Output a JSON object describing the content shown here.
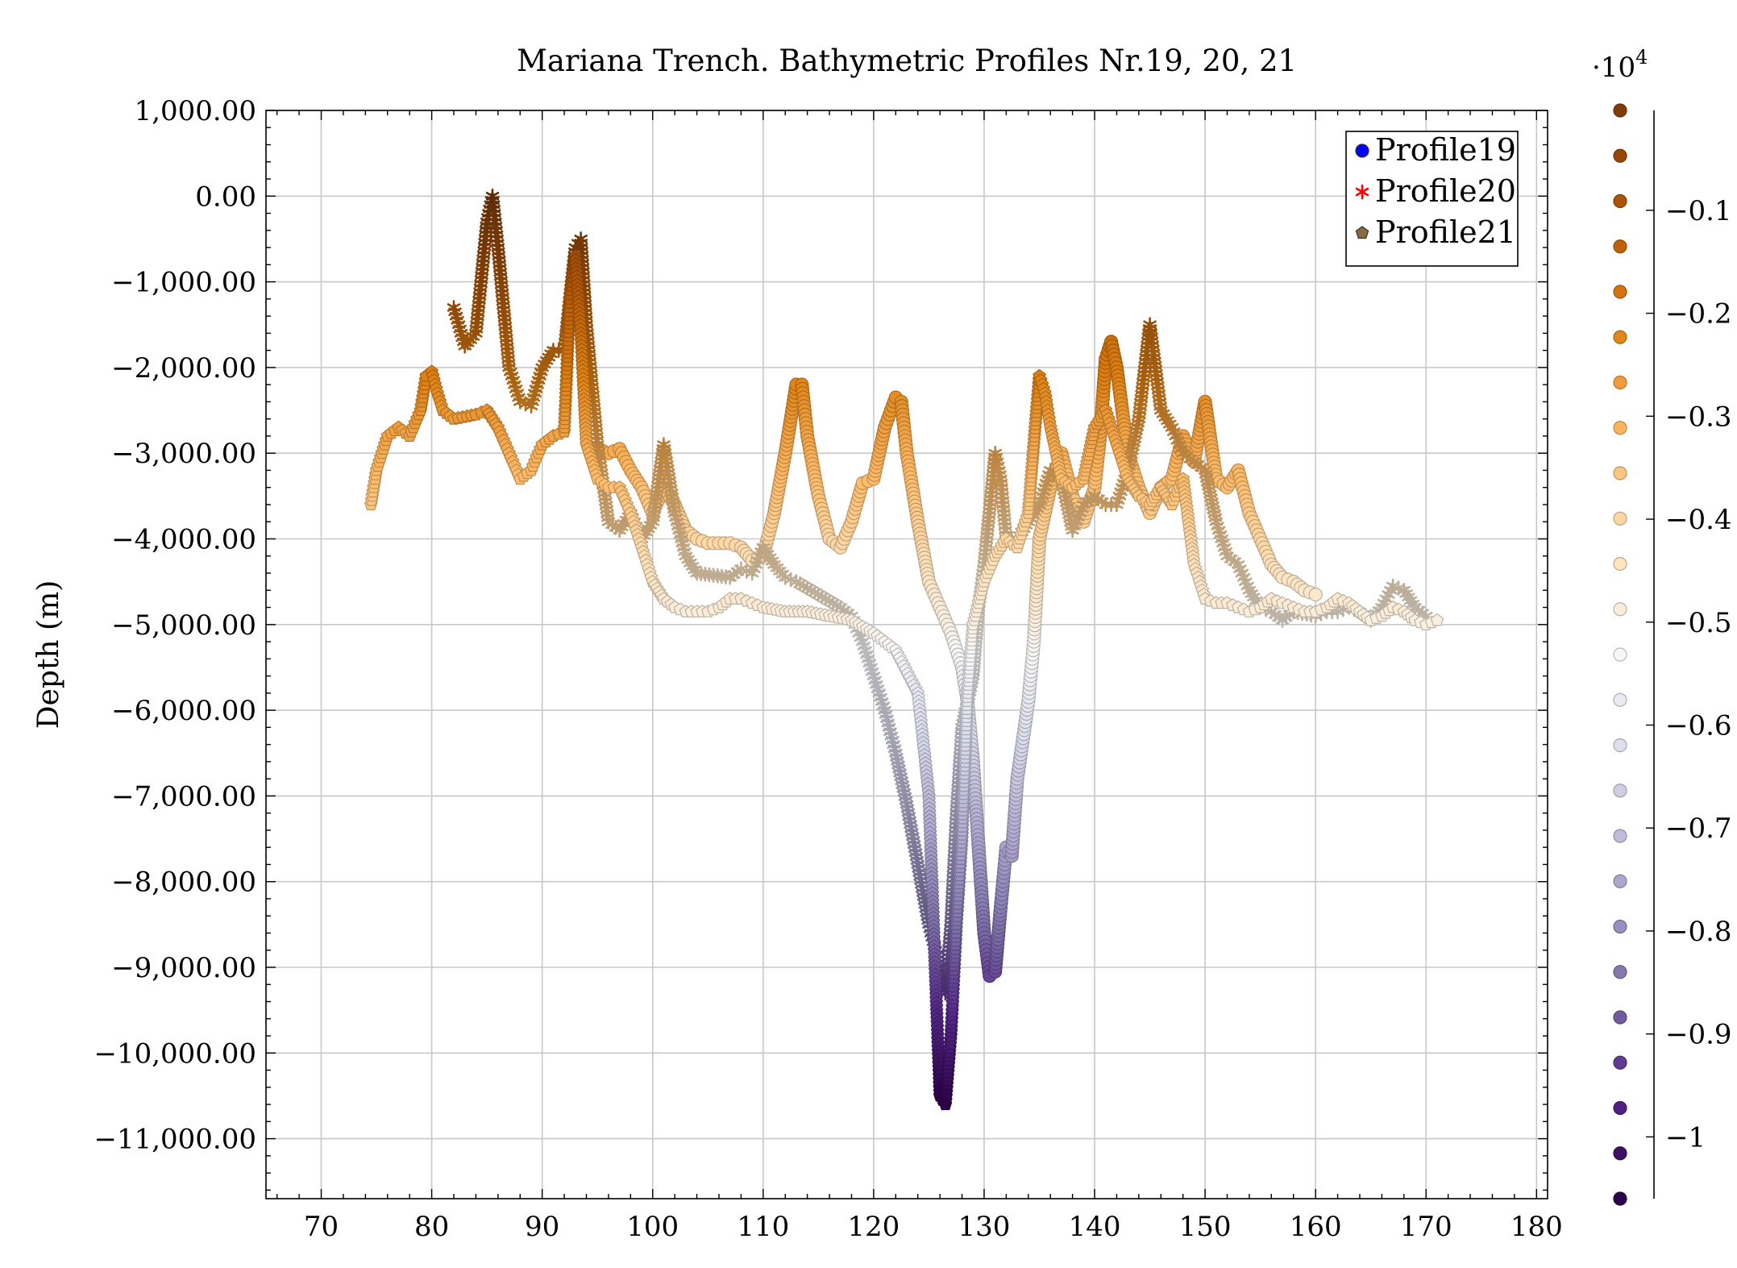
{
  "chart_data": {
    "type": "scatter",
    "title": "Mariana Trench. Bathymetric Profiles Nr.19, 20, 21",
    "xlabel": "",
    "ylabel": "Depth (m)",
    "xlim": [
      65,
      181
    ],
    "ylim": [
      -11700,
      1000
    ],
    "x_ticks": [
      70,
      80,
      90,
      100,
      110,
      120,
      130,
      140,
      150,
      160,
      170,
      180
    ],
    "y_ticks": [
      1000,
      0,
      -1000,
      -2000,
      -3000,
      -4000,
      -5000,
      -6000,
      -7000,
      -8000,
      -9000,
      -10000,
      -11000
    ],
    "x_tick_labels": [
      "70",
      "80",
      "90",
      "100",
      "110",
      "120",
      "130",
      "140",
      "150",
      "160",
      "170",
      "180"
    ],
    "y_tick_labels": [
      "1,000.00",
      "0.00",
      "−1,000.00",
      "−2,000.00",
      "−3,000.00",
      "−4,000.00",
      "−5,000.00",
      "−6,000.00",
      "−7,000.00",
      "−8,000.00",
      "−9,000.00",
      "−10,000.00",
      "−11,000.00"
    ],
    "grid": true,
    "legend_position": "top-right",
    "colormap": [
      "#2d004b",
      "#542788",
      "#8073ac",
      "#b2abd2",
      "#d8daeb",
      "#f7f7f7",
      "#fee0b6",
      "#fdb863",
      "#e08214",
      "#b35806",
      "#7f3b08"
    ],
    "colorbar": {
      "multiplier_label": "·10",
      "multiplier_exp": "4",
      "min": -10600,
      "max": -30,
      "ticks": [
        -1000,
        -2000,
        -3000,
        -4000,
        -5000,
        -6000,
        -7000,
        -8000,
        -9000,
        -10000
      ],
      "tick_labels": [
        "−0.1",
        "−0.2",
        "−0.3",
        "−0.4",
        "−0.5",
        "−0.6",
        "−0.7",
        "−0.8",
        "−0.9",
        "−1"
      ]
    },
    "series": [
      {
        "name": "Profile19",
        "marker": "circle",
        "legend_color": "#0000ff",
        "points": [
          [
            95,
            -2950
          ],
          [
            96,
            -3000
          ],
          [
            97,
            -2950
          ],
          [
            98,
            -3200
          ],
          [
            99,
            -3400
          ],
          [
            100,
            -3700
          ],
          [
            101,
            -3400
          ],
          [
            102,
            -3600
          ],
          [
            103,
            -3900
          ],
          [
            104,
            -4000
          ],
          [
            105,
            -4050
          ],
          [
            106,
            -4050
          ],
          [
            107,
            -4050
          ],
          [
            108,
            -4100
          ],
          [
            109,
            -4250
          ],
          [
            110,
            -4200
          ],
          [
            111,
            -3700
          ],
          [
            112,
            -3000
          ],
          [
            113,
            -2200
          ],
          [
            113.5,
            -2200
          ],
          [
            114,
            -2800
          ],
          [
            115,
            -3500
          ],
          [
            116,
            -4000
          ],
          [
            117,
            -4100
          ],
          [
            118,
            -3800
          ],
          [
            119,
            -3350
          ],
          [
            120,
            -3300
          ],
          [
            121,
            -2700
          ],
          [
            122,
            -2350
          ],
          [
            122.5,
            -2400
          ],
          [
            123,
            -3000
          ],
          [
            124,
            -3800
          ],
          [
            125,
            -4500
          ],
          [
            126,
            -4800
          ],
          [
            127,
            -5100
          ],
          [
            128,
            -5500
          ],
          [
            128.5,
            -5900
          ],
          [
            129,
            -6600
          ],
          [
            129.5,
            -7600
          ],
          [
            130,
            -8600
          ],
          [
            130.5,
            -9100
          ],
          [
            131,
            -9050
          ],
          [
            131.5,
            -8300
          ],
          [
            132,
            -7600
          ],
          [
            132.5,
            -7700
          ],
          [
            133,
            -6800
          ],
          [
            134,
            -5900
          ],
          [
            134.5,
            -5200
          ],
          [
            135,
            -4000
          ],
          [
            136,
            -3400
          ],
          [
            137,
            -3000
          ],
          [
            138,
            -3500
          ],
          [
            139,
            -3800
          ],
          [
            140,
            -3400
          ],
          [
            140.5,
            -2800
          ],
          [
            141,
            -1900
          ],
          [
            141.5,
            -1700
          ],
          [
            142,
            -2000
          ],
          [
            143,
            -3000
          ],
          [
            144,
            -3400
          ],
          [
            145,
            -3700
          ],
          [
            146,
            -3400
          ],
          [
            147,
            -3300
          ],
          [
            148,
            -2800
          ],
          [
            149,
            -3100
          ],
          [
            150,
            -2400
          ],
          [
            151,
            -3300
          ],
          [
            152,
            -3400
          ],
          [
            153,
            -3200
          ],
          [
            154,
            -3700
          ],
          [
            155,
            -4000
          ],
          [
            156,
            -4300
          ],
          [
            157,
            -4450
          ],
          [
            158,
            -4500
          ],
          [
            159,
            -4600
          ],
          [
            160,
            -4650
          ]
        ]
      },
      {
        "name": "Profile20",
        "marker": "asterisk",
        "legend_color": "#ff0000",
        "points": [
          [
            82,
            -1300
          ],
          [
            83,
            -1750
          ],
          [
            84,
            -1600
          ],
          [
            85,
            -300
          ],
          [
            85.5,
            0
          ],
          [
            86,
            -600
          ],
          [
            87,
            -2000
          ],
          [
            88,
            -2400
          ],
          [
            89,
            -2450
          ],
          [
            90,
            -2000
          ],
          [
            91,
            -1800
          ],
          [
            92,
            -1800
          ],
          [
            93,
            -600
          ],
          [
            93.5,
            -500
          ],
          [
            94,
            -1500
          ],
          [
            95,
            -2900
          ],
          [
            96,
            -3800
          ],
          [
            97,
            -3900
          ],
          [
            98,
            -3700
          ],
          [
            99,
            -4000
          ],
          [
            100,
            -3800
          ],
          [
            101,
            -2900
          ],
          [
            102,
            -3700
          ],
          [
            103,
            -4200
          ],
          [
            104,
            -4400
          ],
          [
            107,
            -4450
          ],
          [
            108,
            -4350
          ],
          [
            109,
            -4400
          ],
          [
            110,
            -4100
          ],
          [
            111,
            -4300
          ],
          [
            112,
            -4450
          ],
          [
            113,
            -4500
          ],
          [
            115,
            -4650
          ],
          [
            117,
            -4800
          ],
          [
            118,
            -4900
          ],
          [
            119,
            -5200
          ],
          [
            120,
            -5600
          ],
          [
            121,
            -6000
          ],
          [
            122,
            -6500
          ],
          [
            123,
            -7100
          ],
          [
            124,
            -7800
          ],
          [
            125,
            -8500
          ],
          [
            126,
            -9000
          ],
          [
            126.5,
            -9300
          ],
          [
            127,
            -8500
          ],
          [
            127.5,
            -7200
          ],
          [
            128,
            -6200
          ],
          [
            129,
            -5600
          ],
          [
            129.5,
            -4800
          ],
          [
            130,
            -4300
          ],
          [
            131,
            -3000
          ],
          [
            131.5,
            -3300
          ],
          [
            132,
            -4000
          ],
          [
            133,
            -4000
          ],
          [
            134,
            -3800
          ],
          [
            135,
            -3600
          ],
          [
            136,
            -3200
          ],
          [
            137,
            -3300
          ],
          [
            138,
            -3900
          ],
          [
            139,
            -3600
          ],
          [
            140,
            -3500
          ],
          [
            141,
            -3600
          ],
          [
            142,
            -3600
          ],
          [
            143,
            -3200
          ],
          [
            144,
            -2600
          ],
          [
            145,
            -1500
          ],
          [
            146,
            -2500
          ],
          [
            147,
            -2700
          ],
          [
            148,
            -3000
          ],
          [
            149,
            -3100
          ],
          [
            150,
            -3200
          ],
          [
            151,
            -3800
          ],
          [
            152,
            -4200
          ],
          [
            153,
            -4300
          ],
          [
            154,
            -4600
          ],
          [
            155,
            -4800
          ],
          [
            156,
            -4850
          ],
          [
            157,
            -4950
          ],
          [
            158,
            -4850
          ],
          [
            160,
            -4900
          ],
          [
            161,
            -4850
          ],
          [
            162,
            -4850
          ],
          [
            163,
            -4800
          ],
          [
            164,
            -4850
          ],
          [
            165,
            -4950
          ],
          [
            166,
            -4800
          ],
          [
            167,
            -4550
          ],
          [
            168,
            -4600
          ],
          [
            169,
            -4800
          ],
          [
            170,
            -4900
          ]
        ]
      },
      {
        "name": "Profile21",
        "marker": "pentagon",
        "legend_color": "#8b6a42",
        "points": [
          [
            74.5,
            -3600
          ],
          [
            75,
            -3200
          ],
          [
            76,
            -2800
          ],
          [
            77,
            -2700
          ],
          [
            78,
            -2800
          ],
          [
            79,
            -2500
          ],
          [
            79.5,
            -2100
          ],
          [
            80,
            -2050
          ],
          [
            80.5,
            -2300
          ],
          [
            81,
            -2500
          ],
          [
            82,
            -2600
          ],
          [
            84,
            -2550
          ],
          [
            85,
            -2500
          ],
          [
            86,
            -2700
          ],
          [
            87,
            -3000
          ],
          [
            88,
            -3300
          ],
          [
            89,
            -3200
          ],
          [
            90,
            -2900
          ],
          [
            91,
            -2800
          ],
          [
            92,
            -2750
          ],
          [
            92.5,
            -1200
          ],
          [
            93,
            -700
          ],
          [
            93.5,
            -1600
          ],
          [
            94,
            -2900
          ],
          [
            95,
            -3300
          ],
          [
            96,
            -3400
          ],
          [
            97,
            -3400
          ],
          [
            98,
            -3700
          ],
          [
            99,
            -4100
          ],
          [
            100,
            -4500
          ],
          [
            101,
            -4700
          ],
          [
            102,
            -4800
          ],
          [
            103,
            -4850
          ],
          [
            104,
            -4850
          ],
          [
            105,
            -4850
          ],
          [
            106,
            -4800
          ],
          [
            107,
            -4700
          ],
          [
            108,
            -4700
          ],
          [
            109,
            -4750
          ],
          [
            110,
            -4800
          ],
          [
            112,
            -4850
          ],
          [
            114,
            -4850
          ],
          [
            116,
            -4900
          ],
          [
            118,
            -4950
          ],
          [
            120,
            -5100
          ],
          [
            122,
            -5300
          ],
          [
            124,
            -5800
          ],
          [
            125,
            -7000
          ],
          [
            125.5,
            -8800
          ],
          [
            126,
            -10500
          ],
          [
            126.5,
            -10600
          ],
          [
            127,
            -9800
          ],
          [
            127.5,
            -8500
          ],
          [
            128,
            -7500
          ],
          [
            128.5,
            -5800
          ],
          [
            129,
            -5000
          ],
          [
            130,
            -4500
          ],
          [
            131,
            -4200
          ],
          [
            132,
            -4000
          ],
          [
            133,
            -4100
          ],
          [
            134,
            -3700
          ],
          [
            135,
            -2100
          ],
          [
            135.5,
            -2300
          ],
          [
            136,
            -2700
          ],
          [
            137,
            -3300
          ],
          [
            138,
            -3400
          ],
          [
            139,
            -3300
          ],
          [
            140,
            -2700
          ],
          [
            141,
            -2500
          ],
          [
            142,
            -2900
          ],
          [
            143,
            -3300
          ],
          [
            144,
            -3500
          ],
          [
            145,
            -3600
          ],
          [
            146,
            -3400
          ],
          [
            147,
            -3600
          ],
          [
            148,
            -3300
          ],
          [
            149,
            -4300
          ],
          [
            150,
            -4700
          ],
          [
            151,
            -4750
          ],
          [
            152,
            -4750
          ],
          [
            153,
            -4800
          ],
          [
            154,
            -4850
          ],
          [
            155,
            -4800
          ],
          [
            156,
            -4700
          ],
          [
            157,
            -4750
          ],
          [
            158,
            -4800
          ],
          [
            159,
            -4850
          ],
          [
            160,
            -4850
          ],
          [
            161,
            -4800
          ],
          [
            162,
            -4700
          ],
          [
            163,
            -4750
          ],
          [
            164,
            -4850
          ],
          [
            165,
            -4950
          ],
          [
            166,
            -4900
          ],
          [
            167,
            -4800
          ],
          [
            168,
            -4850
          ],
          [
            169,
            -4950
          ],
          [
            170,
            -5000
          ],
          [
            171,
            -4950
          ]
        ]
      }
    ]
  }
}
